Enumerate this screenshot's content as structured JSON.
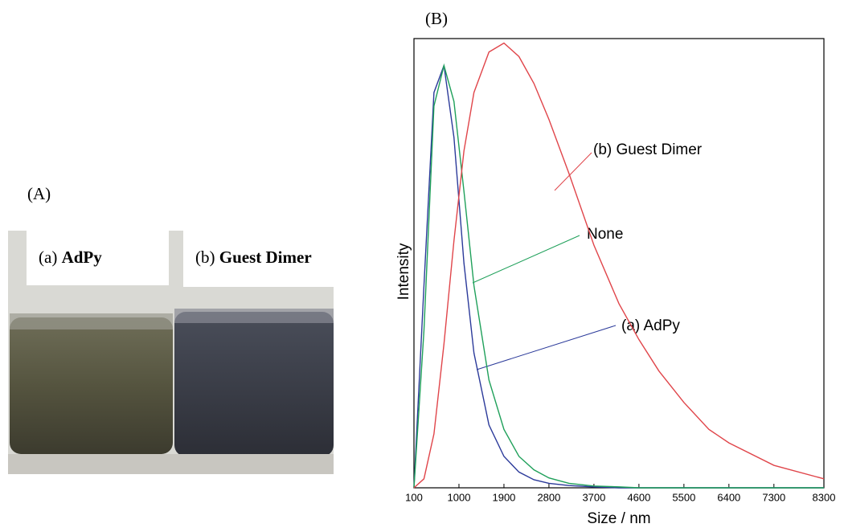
{
  "panel_a": {
    "label": "(A)",
    "captions": [
      {
        "prefix": "(a)",
        "name": "AdPy"
      },
      {
        "prefix": "(b)",
        "name": "Guest Dimer"
      }
    ]
  },
  "panel_b": {
    "label": "(B)"
  },
  "chart_data": {
    "type": "line",
    "xlabel": "Size / nm",
    "ylabel": "Intensity",
    "x": [
      100,
      300,
      500,
      700,
      900,
      1100,
      1300,
      1600,
      1900,
      2200,
      2500,
      2800,
      3200,
      3700,
      4200,
      4600,
      5000,
      5500,
      6000,
      6400,
      7300,
      8300
    ],
    "xlim": [
      100,
      8300
    ],
    "xticks": [
      100,
      1000,
      1900,
      2800,
      3700,
      4600,
      5500,
      6400,
      7300,
      8300
    ],
    "ylim": [
      0,
      1
    ],
    "series": [
      {
        "name": "(a) AdPy",
        "color": "#2b3a9a",
        "values": [
          0,
          0.45,
          0.88,
          0.94,
          0.78,
          0.5,
          0.3,
          0.14,
          0.07,
          0.035,
          0.018,
          0.01,
          0.005,
          0.002,
          0,
          0,
          0,
          0,
          0,
          0,
          0,
          0
        ]
      },
      {
        "name": "None",
        "color": "#1fa05a",
        "values": [
          0,
          0.35,
          0.85,
          0.94,
          0.86,
          0.66,
          0.45,
          0.24,
          0.13,
          0.07,
          0.04,
          0.022,
          0.01,
          0.004,
          0.002,
          0,
          0,
          0,
          0,
          0,
          0,
          0
        ]
      },
      {
        "name": "(b) Guest Dimer",
        "color": "#e0454a",
        "values": [
          0,
          0.02,
          0.12,
          0.32,
          0.55,
          0.75,
          0.88,
          0.97,
          0.99,
          0.96,
          0.9,
          0.82,
          0.7,
          0.54,
          0.41,
          0.33,
          0.26,
          0.19,
          0.13,
          0.1,
          0.05,
          0.02
        ]
      }
    ]
  }
}
